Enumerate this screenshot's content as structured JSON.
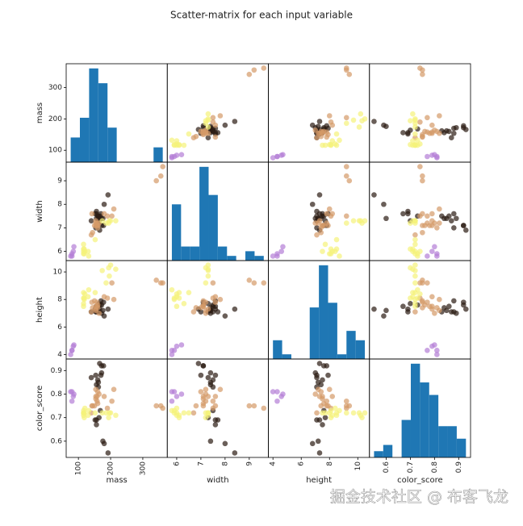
{
  "chart_data": {
    "type": "scatter_matrix",
    "title": "Scatter-matrix for each input variable",
    "watermark": "掘金技术社区 @ 布客飞龙",
    "hist_color": "#1f77b4",
    "variables": [
      {
        "label": "mass",
        "lim": [
          62,
          376
        ],
        "ticks": [
          100,
          200,
          300
        ],
        "bins": [
          76,
          104.6,
          133.2,
          161.8,
          190.4,
          219,
          247.6,
          276.2,
          304.8,
          333.4,
          362
        ],
        "counts": [
          5,
          9,
          19,
          16,
          7,
          0,
          0,
          0,
          0,
          3
        ]
      },
      {
        "label": "width",
        "lim": [
          5.61,
          9.79
        ],
        "ticks": [
          6,
          7,
          8,
          9
        ],
        "bins": [
          5.8,
          6.18,
          6.56,
          6.94,
          7.32,
          7.7,
          8.08,
          8.46,
          8.84,
          9.22,
          9.6
        ],
        "counts": [
          12,
          3,
          3,
          20,
          14,
          3,
          1,
          0,
          2,
          1
        ]
      },
      {
        "label": "height",
        "lim": [
          3.675,
          10.825
        ],
        "ticks": [
          4,
          6,
          8,
          10
        ],
        "bins": [
          4.0,
          4.65,
          5.3,
          5.95,
          6.6,
          7.25,
          7.9,
          8.55,
          9.2,
          9.85,
          10.5
        ],
        "counts": [
          4,
          1,
          0,
          0,
          11,
          20,
          12,
          1,
          6,
          4
        ]
      },
      {
        "label": "color_score",
        "lim": [
          0.531,
          0.949
        ],
        "ticks": [
          0.6,
          0.7,
          0.8,
          0.9
        ],
        "bins": [
          0.55,
          0.588,
          0.626,
          0.664,
          0.702,
          0.74,
          0.778,
          0.816,
          0.854,
          0.892,
          0.93
        ],
        "counts": [
          1,
          2,
          0,
          6,
          15,
          12,
          10,
          5,
          5,
          3
        ]
      }
    ],
    "series": [
      {
        "color": "#2b1b12",
        "values": [
          [
            192,
            8.4,
            7.3,
            0.55
          ],
          [
            180,
            8.0,
            6.8,
            0.59
          ],
          [
            176,
            7.4,
            7.2,
            0.6
          ],
          [
            178,
            7.1,
            7.8,
            0.92
          ],
          [
            172,
            7.4,
            7.0,
            0.89
          ],
          [
            166,
            6.9,
            7.3,
            0.93
          ],
          [
            172,
            7.1,
            7.6,
            0.92
          ],
          [
            154,
            7.0,
            7.1,
            0.88
          ],
          [
            164,
            7.3,
            7.7,
            0.7
          ],
          [
            152,
            7.6,
            7.3,
            0.69
          ],
          [
            156,
            7.7,
            7.1,
            0.69
          ],
          [
            156,
            7.6,
            7.5,
            0.67
          ],
          [
            168,
            7.5,
            7.6,
            0.73
          ],
          [
            162,
            7.5,
            7.1,
            0.83
          ],
          [
            162,
            7.4,
            7.2,
            0.85
          ],
          [
            160,
            7.5,
            7.5,
            0.86
          ],
          [
            156,
            7.4,
            7.4,
            0.84
          ],
          [
            140,
            7.3,
            7.1,
            0.87
          ],
          [
            170,
            7.6,
            7.9,
            0.88
          ]
        ]
      },
      {
        "color": "#b47ed6",
        "values": [
          [
            86,
            6.2,
            4.7,
            0.8
          ],
          [
            84,
            6.0,
            4.6,
            0.79
          ],
          [
            80,
            5.8,
            4.3,
            0.77
          ],
          [
            80,
            5.9,
            4.3,
            0.81
          ],
          [
            76,
            5.8,
            4.0,
            0.81
          ]
        ]
      },
      {
        "color": "#d49a68",
        "values": [
          [
            342,
            9.0,
            9.4,
            0.75
          ],
          [
            356,
            9.2,
            9.2,
            0.75
          ],
          [
            362,
            9.6,
            9.2,
            0.74
          ],
          [
            204,
            7.5,
            9.2,
            0.77
          ],
          [
            140,
            6.7,
            7.1,
            0.72
          ],
          [
            160,
            7.0,
            7.4,
            0.81
          ],
          [
            158,
            7.1,
            7.5,
            0.79
          ],
          [
            210,
            7.8,
            8.0,
            0.82
          ],
          [
            164,
            7.2,
            7.0,
            0.8
          ],
          [
            190,
            7.5,
            8.1,
            0.74
          ],
          [
            142,
            7.6,
            7.8,
            0.75
          ],
          [
            150,
            7.1,
            7.9,
            0.75
          ],
          [
            160,
            7.1,
            7.6,
            0.76
          ],
          [
            154,
            7.3,
            7.3,
            0.79
          ],
          [
            158,
            7.2,
            7.8,
            0.77
          ],
          [
            144,
            6.8,
            7.4,
            0.75
          ],
          [
            154,
            7.1,
            7.5,
            0.78
          ],
          [
            180,
            7.6,
            8.2,
            0.79
          ],
          [
            154,
            7.2,
            7.2,
            0.82
          ]
        ]
      },
      {
        "color": "#f5f27a",
        "values": [
          [
            194,
            7.2,
            10.3,
            0.7
          ],
          [
            200,
            7.3,
            10.5,
            0.72
          ],
          [
            186,
            7.2,
            9.2,
            0.72
          ],
          [
            216,
            7.3,
            10.2,
            0.71
          ],
          [
            196,
            7.3,
            9.7,
            0.72
          ],
          [
            174,
            7.3,
            10.1,
            0.72
          ],
          [
            132,
            5.8,
            8.7,
            0.73
          ],
          [
            130,
            6.0,
            8.2,
            0.71
          ],
          [
            116,
            6.0,
            7.5,
            0.72
          ],
          [
            118,
            5.9,
            8.0,
            0.72
          ],
          [
            120,
            6.0,
            8.4,
            0.74
          ],
          [
            116,
            6.1,
            8.5,
            0.71
          ],
          [
            116,
            6.3,
            7.7,
            0.72
          ],
          [
            116,
            5.9,
            8.1,
            0.73
          ],
          [
            152,
            6.5,
            8.5,
            0.72
          ],
          [
            118,
            6.1,
            8.1,
            0.7
          ]
        ]
      }
    ]
  }
}
